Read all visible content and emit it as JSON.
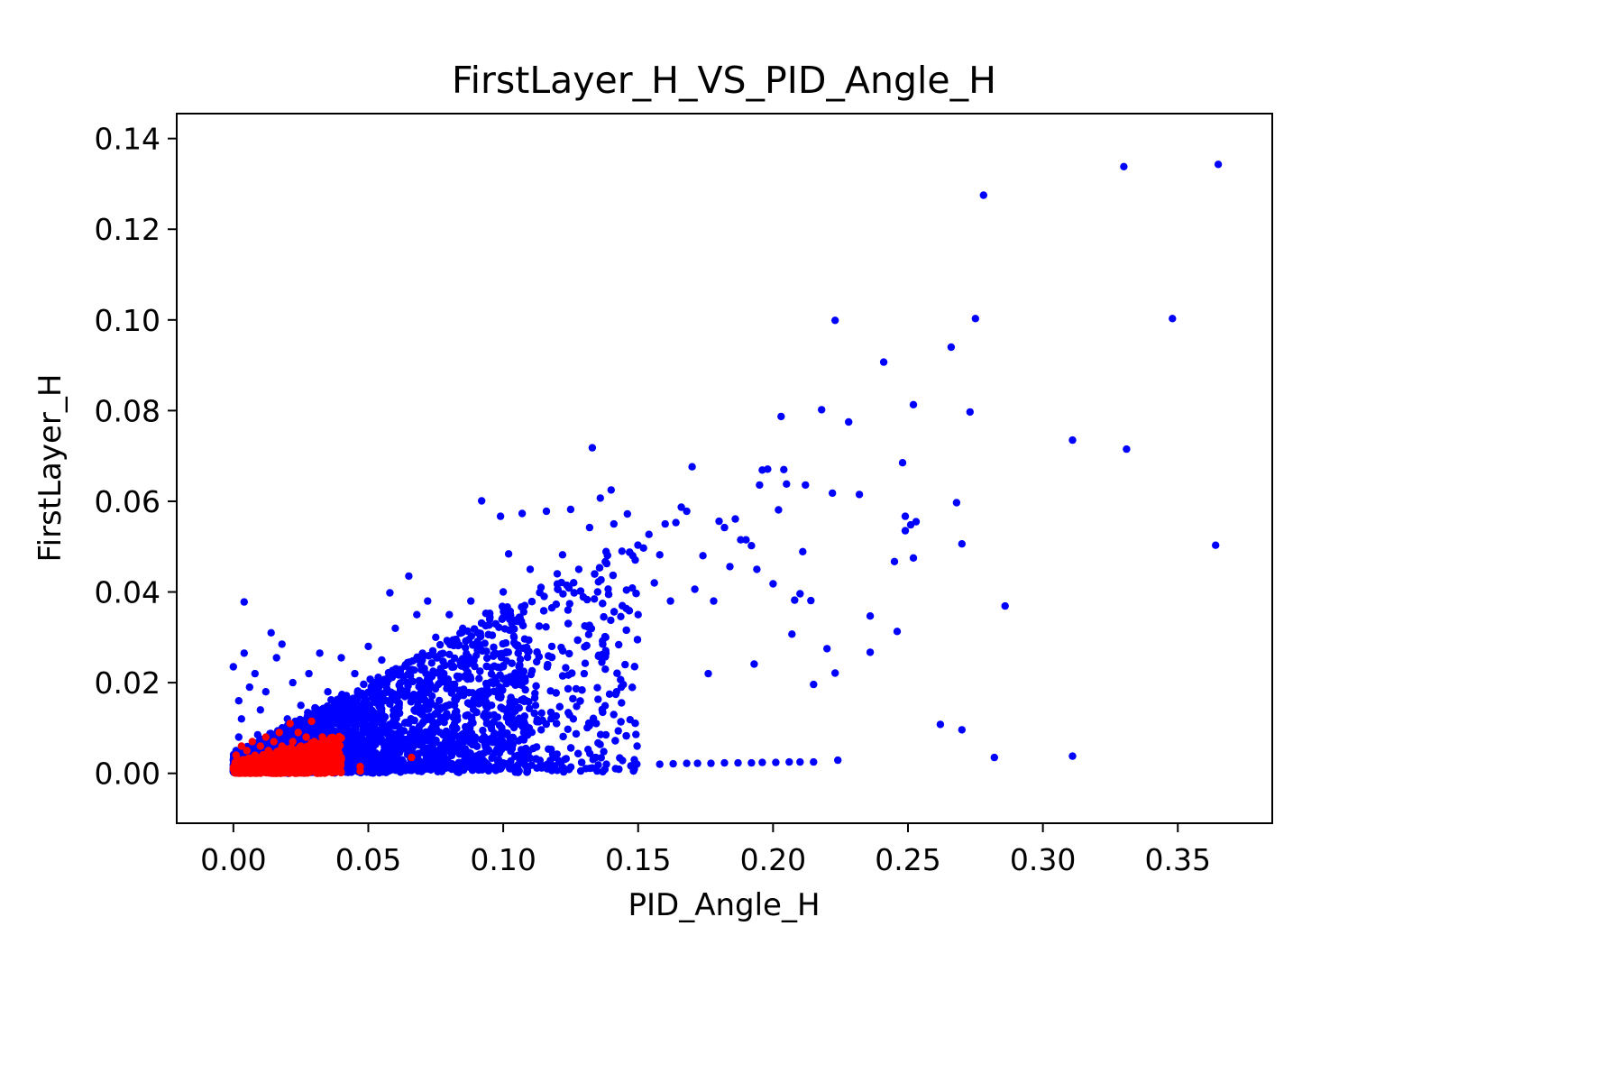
{
  "chart_data": {
    "type": "scatter",
    "title": "FirstLayer_H_VS_PID_Angle_H",
    "xlabel": "PID_Angle_H",
    "ylabel": "FirstLayer_H",
    "xlim": [
      -0.021,
      0.385
    ],
    "ylim": [
      -0.011,
      0.1455
    ],
    "xticks": [
      "0.00",
      "0.05",
      "0.10",
      "0.15",
      "0.20",
      "0.25",
      "0.30",
      "0.35"
    ],
    "yticks": [
      "0.00",
      "0.02",
      "0.04",
      "0.06",
      "0.08",
      "0.10",
      "0.12",
      "0.14"
    ],
    "grid": false,
    "legend": "none",
    "series": [
      {
        "color": "#0000ff",
        "points": [
          [
            0.0,
            0.001
          ],
          [
            0.0,
            0.003
          ],
          [
            0.001,
            0.005
          ],
          [
            0.002,
            0.008
          ],
          [
            0.003,
            0.012
          ],
          [
            0.0,
            0.0235
          ],
          [
            0.002,
            0.016
          ],
          [
            0.004,
            0.0265
          ],
          [
            0.004,
            0.0378
          ],
          [
            0.006,
            0.019
          ],
          [
            0.008,
            0.022
          ],
          [
            0.009,
            0.0085
          ],
          [
            0.01,
            0.014
          ],
          [
            0.012,
            0.018
          ],
          [
            0.014,
            0.031
          ],
          [
            0.016,
            0.0255
          ],
          [
            0.018,
            0.0285
          ],
          [
            0.02,
            0.012
          ],
          [
            0.022,
            0.02
          ],
          [
            0.025,
            0.015
          ],
          [
            0.028,
            0.022
          ],
          [
            0.032,
            0.0265
          ],
          [
            0.035,
            0.018
          ],
          [
            0.04,
            0.0255
          ],
          [
            0.042,
            0.012
          ],
          [
            0.045,
            0.022
          ],
          [
            0.05,
            0.028
          ],
          [
            0.055,
            0.025
          ],
          [
            0.058,
            0.0398
          ],
          [
            0.06,
            0.032
          ],
          [
            0.062,
            0.018
          ],
          [
            0.065,
            0.0435
          ],
          [
            0.068,
            0.035
          ],
          [
            0.07,
            0.025
          ],
          [
            0.072,
            0.038
          ],
          [
            0.075,
            0.03
          ],
          [
            0.078,
            0.022
          ],
          [
            0.08,
            0.035
          ],
          [
            0.082,
            0.015
          ],
          [
            0.085,
            0.032
          ],
          [
            0.088,
            0.038
          ],
          [
            0.09,
            0.026
          ],
          [
            0.092,
            0.0601
          ],
          [
            0.095,
            0.034
          ],
          [
            0.097,
            0.018
          ],
          [
            0.099,
            0.0567
          ],
          [
            0.1,
            0.04
          ],
          [
            0.102,
            0.0484
          ],
          [
            0.104,
            0.03
          ],
          [
            0.106,
            0.022
          ],
          [
            0.107,
            0.0573
          ],
          [
            0.108,
            0.037
          ],
          [
            0.11,
            0.045
          ],
          [
            0.112,
            0.015
          ],
          [
            0.114,
            0.041
          ],
          [
            0.116,
            0.0578
          ],
          [
            0.118,
            0.028
          ],
          [
            0.12,
            0.044
          ],
          [
            0.122,
            0.0482
          ],
          [
            0.124,
            0.036
          ],
          [
            0.125,
            0.0582
          ],
          [
            0.126,
            0.012
          ],
          [
            0.128,
            0.045
          ],
          [
            0.13,
            0.022
          ],
          [
            0.132,
            0.0542
          ],
          [
            0.133,
            0.0718
          ],
          [
            0.135,
            0.04
          ],
          [
            0.136,
            0.0607
          ],
          [
            0.138,
            0.03
          ],
          [
            0.14,
            0.0625
          ],
          [
            0.141,
            0.055
          ],
          [
            0.142,
            0.018
          ],
          [
            0.144,
            0.049
          ],
          [
            0.146,
            0.0572
          ],
          [
            0.148,
            0.048
          ],
          [
            0.15,
            0.035
          ],
          [
            0.152,
            0.0497
          ],
          [
            0.154,
            0.0527
          ],
          [
            0.156,
            0.042
          ],
          [
            0.158,
            0.0482
          ],
          [
            0.16,
            0.055
          ],
          [
            0.162,
            0.038
          ],
          [
            0.164,
            0.0553
          ],
          [
            0.166,
            0.0587
          ],
          [
            0.168,
            0.0578
          ],
          [
            0.17,
            0.0676
          ],
          [
            0.171,
            0.0406
          ],
          [
            0.174,
            0.048
          ],
          [
            0.176,
            0.022
          ],
          [
            0.178,
            0.038
          ],
          [
            0.18,
            0.0556
          ],
          [
            0.182,
            0.0542
          ],
          [
            0.184,
            0.0456
          ],
          [
            0.186,
            0.0561
          ],
          [
            0.188,
            0.0515
          ],
          [
            0.19,
            0.0515
          ],
          [
            0.192,
            0.0502
          ],
          [
            0.193,
            0.0241
          ],
          [
            0.194,
            0.045
          ],
          [
            0.195,
            0.0636
          ],
          [
            0.196,
            0.0669
          ],
          [
            0.198,
            0.0671
          ],
          [
            0.2,
            0.0418
          ],
          [
            0.202,
            0.0581
          ],
          [
            0.203,
            0.0787
          ],
          [
            0.204,
            0.067
          ],
          [
            0.205,
            0.0638
          ],
          [
            0.207,
            0.0307
          ],
          [
            0.208,
            0.0382
          ],
          [
            0.21,
            0.0396
          ],
          [
            0.211,
            0.0489
          ],
          [
            0.212,
            0.0636
          ],
          [
            0.214,
            0.0381
          ],
          [
            0.215,
            0.0196
          ],
          [
            0.218,
            0.0802
          ],
          [
            0.22,
            0.0275
          ],
          [
            0.222,
            0.0618
          ],
          [
            0.223,
            0.0221
          ],
          [
            0.223,
            0.0999
          ],
          [
            0.224,
            0.0029
          ],
          [
            0.228,
            0.0775
          ],
          [
            0.232,
            0.0615
          ],
          [
            0.236,
            0.0347
          ],
          [
            0.236,
            0.0267
          ],
          [
            0.241,
            0.0907
          ],
          [
            0.245,
            0.0467
          ],
          [
            0.246,
            0.0313
          ],
          [
            0.248,
            0.0685
          ],
          [
            0.249,
            0.0567
          ],
          [
            0.249,
            0.0535
          ],
          [
            0.251,
            0.0548
          ],
          [
            0.252,
            0.0813
          ],
          [
            0.252,
            0.0475
          ],
          [
            0.253,
            0.0555
          ],
          [
            0.262,
            0.0108
          ],
          [
            0.266,
            0.094
          ],
          [
            0.268,
            0.0597
          ],
          [
            0.27,
            0.0506
          ],
          [
            0.27,
            0.0096
          ],
          [
            0.273,
            0.0797
          ],
          [
            0.275,
            0.1003
          ],
          [
            0.278,
            0.1275
          ],
          [
            0.282,
            0.0035
          ],
          [
            0.286,
            0.0369
          ],
          [
            0.311,
            0.0735
          ],
          [
            0.311,
            0.0038
          ],
          [
            0.33,
            0.1338
          ],
          [
            0.331,
            0.0715
          ],
          [
            0.348,
            0.1003
          ],
          [
            0.364,
            0.0503
          ],
          [
            0.365,
            0.1343
          ],
          [
            0.158,
            0.002
          ],
          [
            0.163,
            0.0021
          ],
          [
            0.168,
            0.0022
          ],
          [
            0.172,
            0.0022
          ],
          [
            0.177,
            0.0022
          ],
          [
            0.182,
            0.0023
          ],
          [
            0.187,
            0.0023
          ],
          [
            0.192,
            0.0023
          ],
          [
            0.196,
            0.0024
          ],
          [
            0.201,
            0.0024
          ],
          [
            0.206,
            0.0025
          ],
          [
            0.21,
            0.0025
          ],
          [
            0.215,
            0.0025
          ]
        ]
      },
      {
        "color": "#ff0000",
        "points": [
          [
            0.0,
            0.001
          ],
          [
            0.001,
            0.004
          ],
          [
            0.002,
            0.002
          ],
          [
            0.003,
            0.006
          ],
          [
            0.004,
            0.003
          ],
          [
            0.005,
            0.005
          ],
          [
            0.006,
            0.001
          ],
          [
            0.007,
            0.007
          ],
          [
            0.008,
            0.004
          ],
          [
            0.009,
            0.002
          ],
          [
            0.01,
            0.006
          ],
          [
            0.011,
            0.003
          ],
          [
            0.012,
            0.008
          ],
          [
            0.013,
            0.005
          ],
          [
            0.014,
            0.002
          ],
          [
            0.015,
            0.007
          ],
          [
            0.016,
            0.004
          ],
          [
            0.017,
            0.009
          ],
          [
            0.018,
            0.006
          ],
          [
            0.019,
            0.003
          ],
          [
            0.02,
            0.005
          ],
          [
            0.021,
            0.011
          ],
          [
            0.022,
            0.007
          ],
          [
            0.023,
            0.004
          ],
          [
            0.024,
            0.009
          ],
          [
            0.025,
            0.006
          ],
          [
            0.026,
            0.003
          ],
          [
            0.027,
            0.008
          ],
          [
            0.028,
            0.005
          ],
          [
            0.029,
            0.0115
          ],
          [
            0.03,
            0.007
          ],
          [
            0.031,
            0.004
          ],
          [
            0.032,
            0.006
          ],
          [
            0.033,
            0.008
          ],
          [
            0.034,
            0.003
          ],
          [
            0.035,
            0.005
          ],
          [
            0.036,
            0.002
          ],
          [
            0.038,
            0.004
          ],
          [
            0.04,
            0.003
          ],
          [
            0.047,
            0.0015
          ],
          [
            0.047,
            0.0005
          ],
          [
            0.066,
            0.0035
          ]
        ]
      }
    ]
  }
}
